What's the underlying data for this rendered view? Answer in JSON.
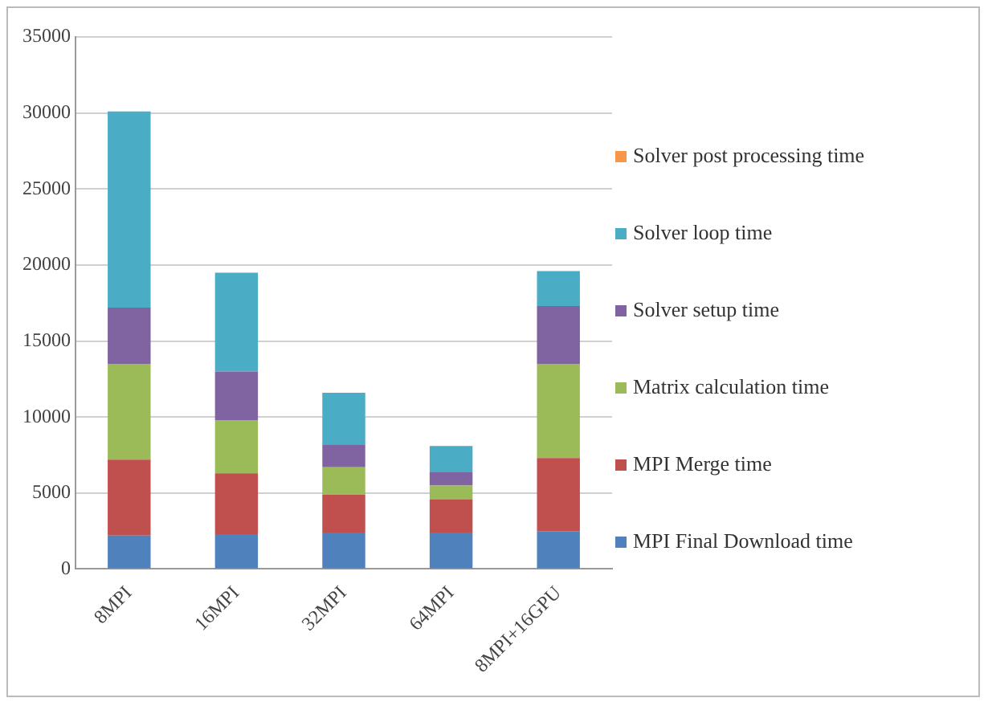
{
  "chart_data": {
    "type": "bar",
    "stacked": true,
    "categories": [
      "8MPI",
      "16MPI",
      "32MPI",
      "64MPI",
      "8MPI+16GPU"
    ],
    "series": [
      {
        "name": "MPI Final Download time",
        "color": "#4f81bd",
        "values": [
          2200,
          2300,
          2400,
          2400,
          2500
        ]
      },
      {
        "name": "MPI Merge time",
        "color": "#c0504d",
        "values": [
          5000,
          4000,
          2500,
          2200,
          4800
        ]
      },
      {
        "name": "Matrix calculation time",
        "color": "#9bbb59",
        "values": [
          6300,
          3500,
          1800,
          900,
          6200
        ]
      },
      {
        "name": "Solver setup time",
        "color": "#8064a2",
        "values": [
          3700,
          3200,
          1500,
          900,
          3800
        ]
      },
      {
        "name": "Solver loop time",
        "color": "#4bacc6",
        "values": [
          12900,
          6500,
          3400,
          1700,
          2300
        ]
      },
      {
        "name": "Solver post processing time",
        "color": "#f79646",
        "values": [
          0,
          0,
          0,
          0,
          0
        ]
      }
    ],
    "ylim": [
      0,
      35000
    ],
    "yticks": [
      0,
      5000,
      10000,
      15000,
      20000,
      25000,
      30000,
      35000
    ],
    "grid": "y",
    "legend": "right"
  }
}
